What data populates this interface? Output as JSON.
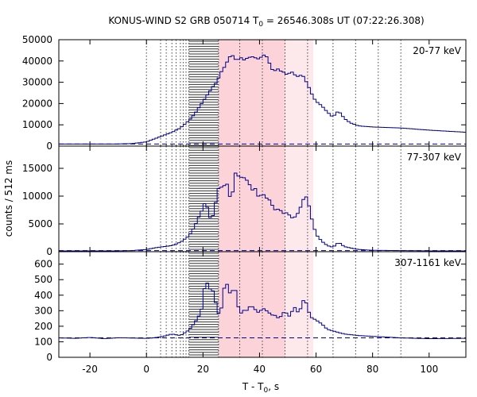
{
  "title_prefix": "KONUS-WIND S2 GRB 050714 T",
  "title_sub": "0",
  "title_suffix": " = 26546.308s UT (07:22:26.308)",
  "ylabel": "counts / 512 ms",
  "xlabel_prefix": "T - T",
  "xlabel_sub": "0",
  "xlabel_suffix": ", s",
  "colors": {
    "curve": "#00008b",
    "shade_dark": "#fcd3d8",
    "shade_light": "#fde9ec",
    "hatch": "#333333"
  },
  "chart_data": {
    "type": "line",
    "xlim": [
      -31,
      113
    ],
    "x_ticks": [
      -20,
      0,
      20,
      40,
      60,
      80,
      100
    ],
    "x_tick_labels": [
      "-20",
      "0",
      "20",
      "40",
      "60",
      "80",
      "100"
    ],
    "shaded_intervals": [
      {
        "x0": 25.5,
        "x1": 49,
        "shade": "dark"
      },
      {
        "x0": 49,
        "x1": 59,
        "shade": "light"
      }
    ],
    "hatched_interval": [
      15,
      25.5
    ],
    "spectrum_boundaries_x": [
      0,
      5,
      7,
      9,
      10.5,
      12,
      13,
      14,
      15,
      25.5,
      33,
      41,
      49,
      57,
      66,
      74,
      82,
      90
    ],
    "panels": [
      {
        "label": "20-77 keV",
        "ylim": [
          0,
          50000
        ],
        "y_ticks": [
          0,
          10000,
          20000,
          30000,
          40000,
          50000
        ],
        "y_tick_labels": [
          "0",
          "10000",
          "20000",
          "30000",
          "40000",
          "50000"
        ],
        "background": 1000,
        "x": [
          -31,
          -10,
          -5,
          0,
          3,
          6,
          9,
          12,
          15,
          17,
          19,
          21,
          23,
          24,
          25,
          26,
          27,
          28,
          29,
          30,
          31,
          32,
          33,
          34,
          35,
          36,
          37,
          38,
          39,
          40,
          41,
          42,
          43,
          44,
          45,
          46,
          47,
          48,
          49,
          50,
          51,
          52,
          53,
          54,
          55,
          56,
          57,
          58,
          59,
          60,
          62,
          64,
          66,
          67,
          68,
          70,
          72,
          75,
          80,
          90,
          100,
          113
        ],
        "values": [
          1000,
          1000,
          1200,
          2000,
          3500,
          5000,
          6500,
          8500,
          12000,
          15000,
          19000,
          23000,
          27000,
          29000,
          30000,
          34000,
          36000,
          38000,
          41000,
          43000,
          42000,
          39500,
          42000,
          41000,
          40000,
          42500,
          41000,
          43000,
          40000,
          42000,
          41500,
          44000,
          40000,
          38000,
          34000,
          37000,
          35500,
          35000,
          34500,
          33000,
          35500,
          34000,
          33000,
          32500,
          34000,
          31500,
          29000,
          26000,
          23000,
          21000,
          19000,
          16000,
          13500,
          15500,
          16500,
          13000,
          11000,
          9500,
          9000,
          8500,
          7500,
          6500
        ]
      },
      {
        "label": "77-307 keV",
        "ylim": [
          0,
          19000
        ],
        "y_ticks": [
          0,
          5000,
          10000,
          15000
        ],
        "y_tick_labels": [
          "0",
          "5000",
          "10000",
          "15000"
        ],
        "background": 200,
        "x": [
          -31,
          -10,
          -5,
          0,
          3,
          6,
          9,
          12,
          15,
          17,
          19,
          20,
          21,
          22,
          23,
          24,
          25,
          26,
          27,
          28,
          29,
          30,
          31,
          32,
          33,
          34,
          35,
          36,
          37,
          38,
          39,
          40,
          41,
          42,
          43,
          44,
          45,
          46,
          47,
          48,
          49,
          50,
          51,
          52,
          53,
          54,
          55,
          56,
          57,
          58,
          60,
          62,
          64,
          66,
          68,
          70,
          75,
          80,
          100,
          113
        ],
        "values": [
          150,
          150,
          200,
          400,
          700,
          900,
          1100,
          1700,
          2800,
          4500,
          6800,
          7800,
          9500,
          6500,
          5800,
          7200,
          10500,
          12200,
          11000,
          12800,
          11500,
          8400,
          13100,
          15200,
          12000,
          14800,
          11800,
          13900,
          10200,
          12000,
          10700,
          9300,
          11000,
          9500,
          9800,
          8800,
          7900,
          7200,
          8100,
          6700,
          7100,
          6900,
          6300,
          5900,
          6600,
          7200,
          8800,
          10000,
          9700,
          6800,
          3100,
          1900,
          1100,
          800,
          1700,
          900,
          400,
          250,
          150,
          150
        ]
      },
      {
        "label": "307-1161 keV",
        "ylim": [
          0,
          680
        ],
        "y_ticks": [
          0,
          100,
          200,
          300,
          400,
          500,
          600
        ],
        "y_tick_labels": [
          "0",
          "100",
          "200",
          "300",
          "400",
          "500",
          "600"
        ],
        "background": 125,
        "x": [
          -31,
          -25,
          -20,
          -15,
          -10,
          -5,
          0,
          3,
          6,
          9,
          12,
          15,
          17,
          19,
          20,
          21,
          22,
          23,
          24,
          25,
          26,
          27,
          28,
          29,
          30,
          31,
          32,
          33,
          34,
          35,
          36,
          37,
          38,
          39,
          40,
          41,
          42,
          43,
          44,
          45,
          46,
          47,
          48,
          49,
          50,
          51,
          52,
          53,
          54,
          55,
          56,
          57,
          58,
          60,
          62,
          64,
          66,
          70,
          75,
          80,
          90,
          100,
          113
        ],
        "values": [
          125,
          122,
          128,
          120,
          126,
          124,
          122,
          126,
          135,
          150,
          140,
          175,
          220,
          280,
          340,
          545,
          410,
          470,
          385,
          320,
          245,
          390,
          500,
          440,
          390,
          470,
          390,
          260,
          310,
          295,
          310,
          340,
          310,
          305,
          275,
          330,
          295,
          305,
          265,
          280,
          260,
          250,
          275,
          300,
          270,
          260,
          330,
          310,
          275,
          350,
          380,
          320,
          260,
          240,
          215,
          180,
          170,
          150,
          140,
          135,
          125,
          120,
          122
        ]
      }
    ]
  }
}
